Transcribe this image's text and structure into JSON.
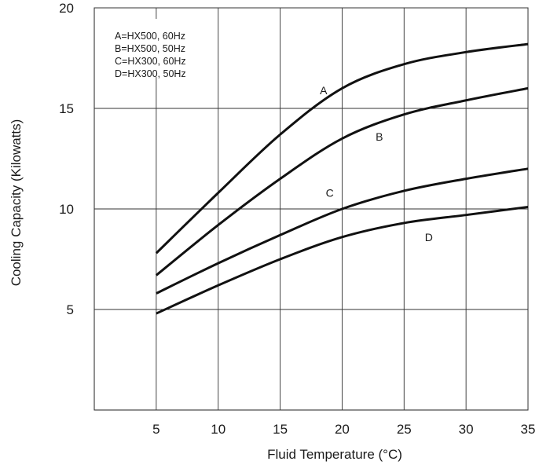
{
  "chart_data": {
    "type": "line",
    "xlabel": "Fluid Temperature (°C)",
    "ylabel": "Cooling Capacity (Kilowatts)",
    "xlim": [
      0,
      35
    ],
    "ylim": [
      0,
      20
    ],
    "x_ticks": [
      5,
      10,
      15,
      20,
      25,
      30,
      35
    ],
    "y_ticks": [
      5,
      10,
      15,
      20
    ],
    "grid": true,
    "legend": {
      "placement": "top-left",
      "entries": [
        "A=HX500, 60Hz",
        "B=HX500, 50Hz",
        "C=HX300, 60Hz",
        "D=HX300, 50Hz"
      ]
    },
    "series": [
      {
        "name": "A",
        "label_at": [
          18.5,
          15.7
        ],
        "x": [
          5,
          10,
          15,
          20,
          25,
          30,
          35
        ],
        "y": [
          7.8,
          10.8,
          13.7,
          16.0,
          17.2,
          17.8,
          18.2
        ]
      },
      {
        "name": "B",
        "label_at": [
          23.0,
          13.4
        ],
        "x": [
          5,
          10,
          15,
          20,
          25,
          30,
          35
        ],
        "y": [
          6.7,
          9.2,
          11.5,
          13.5,
          14.7,
          15.4,
          16.0
        ]
      },
      {
        "name": "C",
        "label_at": [
          19.0,
          10.6
        ],
        "x": [
          5,
          10,
          15,
          20,
          25,
          30,
          35
        ],
        "y": [
          5.8,
          7.3,
          8.7,
          10.0,
          10.9,
          11.5,
          12.0
        ]
      },
      {
        "name": "D",
        "label_at": [
          27.0,
          8.4
        ],
        "x": [
          5,
          10,
          15,
          20,
          25,
          30,
          35
        ],
        "y": [
          4.8,
          6.2,
          7.5,
          8.6,
          9.3,
          9.7,
          10.1
        ]
      }
    ]
  }
}
